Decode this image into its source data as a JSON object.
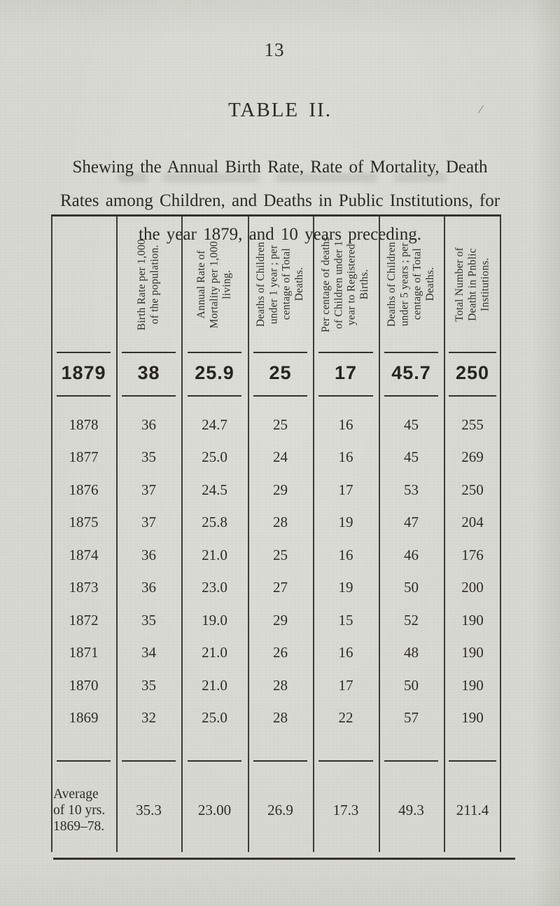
{
  "page": {
    "page_number": "13",
    "title": "TABLE II.",
    "stray_mark": "/",
    "subtitle_lines": [
      "Shewing the Annual Birth Rate, Rate of Mortality, Death",
      "Rates among Children, and Deaths in Public Institutions, for",
      "the year 1879, and 10 years preceding."
    ]
  },
  "table": {
    "columns": [
      {
        "label": ""
      },
      {
        "label": "Birth Rate per 1,000\nof the population."
      },
      {
        "label": "Annual Rate of\nMortality per 1,000\nliving."
      },
      {
        "label": "Deaths of Children\nunder 1 year ; per\ncentage of Total\nDeaths."
      },
      {
        "label": "Per centage of deaths\nof Children under 1\nyear to Registered\nBirths."
      },
      {
        "label": "Deaths of Children\nunder 5 years ; per\ncentage of Total\nDeaths."
      },
      {
        "label": "Total Number of\nDeatht in Pnblic\nInstitutions."
      }
    ],
    "highlight_row": {
      "year": "1879",
      "values": [
        "38",
        "25.9",
        "25",
        "17",
        "45.7",
        "250"
      ]
    },
    "rows": [
      {
        "year": "1878",
        "values": [
          "36",
          "24.7",
          "25",
          "16",
          "45",
          "255"
        ]
      },
      {
        "year": "1877",
        "values": [
          "35",
          "25.0",
          "24",
          "16",
          "45",
          "269"
        ]
      },
      {
        "year": "1876",
        "values": [
          "37",
          "24.5",
          "29",
          "17",
          "53",
          "250"
        ]
      },
      {
        "year": "1875",
        "values": [
          "37",
          "25.8",
          "28",
          "19",
          "47",
          "204"
        ]
      },
      {
        "year": "1874",
        "values": [
          "36",
          "21.0",
          "25",
          "16",
          "46",
          "176"
        ]
      },
      {
        "year": "1873",
        "values": [
          "36",
          "23.0",
          "27",
          "19",
          "50",
          "200"
        ]
      },
      {
        "year": "1872",
        "values": [
          "35",
          "19.0",
          "29",
          "15",
          "52",
          "190"
        ]
      },
      {
        "year": "1871",
        "values": [
          "34",
          "21.0",
          "26",
          "16",
          "48",
          "190"
        ]
      },
      {
        "year": "1870",
        "values": [
          "35",
          "21.0",
          "28",
          "17",
          "50",
          "190"
        ]
      },
      {
        "year": "1869",
        "values": [
          "32",
          "25.0",
          "28",
          "22",
          "57",
          "190"
        ]
      }
    ],
    "average_row": {
      "label": "Average\nof 10 yrs.\n1869–78.",
      "values": [
        "35.3",
        "23.00",
        "26.9",
        "17.3",
        "49.3",
        "211.4"
      ]
    }
  },
  "colors": {
    "paper": "#d8d9d2",
    "ink": "#2b2a25",
    "table_line": "#35322c"
  }
}
